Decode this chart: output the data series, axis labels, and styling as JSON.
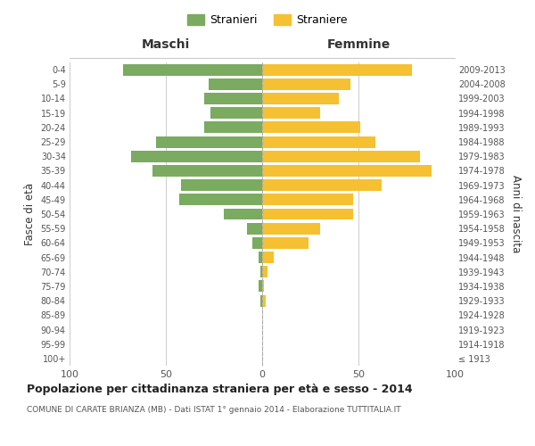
{
  "age_groups": [
    "100+",
    "95-99",
    "90-94",
    "85-89",
    "80-84",
    "75-79",
    "70-74",
    "65-69",
    "60-64",
    "55-59",
    "50-54",
    "45-49",
    "40-44",
    "35-39",
    "30-34",
    "25-29",
    "20-24",
    "15-19",
    "10-14",
    "5-9",
    "0-4"
  ],
  "birth_years": [
    "≤ 1913",
    "1914-1918",
    "1919-1923",
    "1924-1928",
    "1929-1933",
    "1934-1938",
    "1939-1943",
    "1944-1948",
    "1949-1953",
    "1954-1958",
    "1959-1963",
    "1964-1968",
    "1969-1973",
    "1974-1978",
    "1979-1983",
    "1984-1988",
    "1989-1993",
    "1994-1998",
    "1999-2003",
    "2004-2008",
    "2009-2013"
  ],
  "maschi": [
    0,
    0,
    0,
    0,
    1,
    2,
    1,
    2,
    5,
    8,
    20,
    43,
    42,
    57,
    68,
    55,
    30,
    27,
    30,
    28,
    72
  ],
  "femmine": [
    0,
    0,
    0,
    0,
    2,
    1,
    3,
    6,
    24,
    30,
    47,
    47,
    62,
    88,
    82,
    59,
    51,
    30,
    40,
    46,
    78
  ],
  "color_maschi": "#7aab60",
  "color_femmine": "#f5c031",
  "background_color": "#ffffff",
  "grid_color": "#cccccc",
  "title": "Popolazione per cittadinanza straniera per età e sesso - 2014",
  "subtitle": "COMUNE DI CARATE BRIANZA (MB) - Dati ISTAT 1° gennaio 2014 - Elaborazione TUTTITALIA.IT",
  "xlabel_left": "Maschi",
  "xlabel_right": "Femmine",
  "ylabel_left": "Fasce di età",
  "ylabel_right": "Anni di nascita",
  "legend_maschi": "Stranieri",
  "legend_femmine": "Straniere",
  "xlim": 100,
  "bar_height": 0.8
}
